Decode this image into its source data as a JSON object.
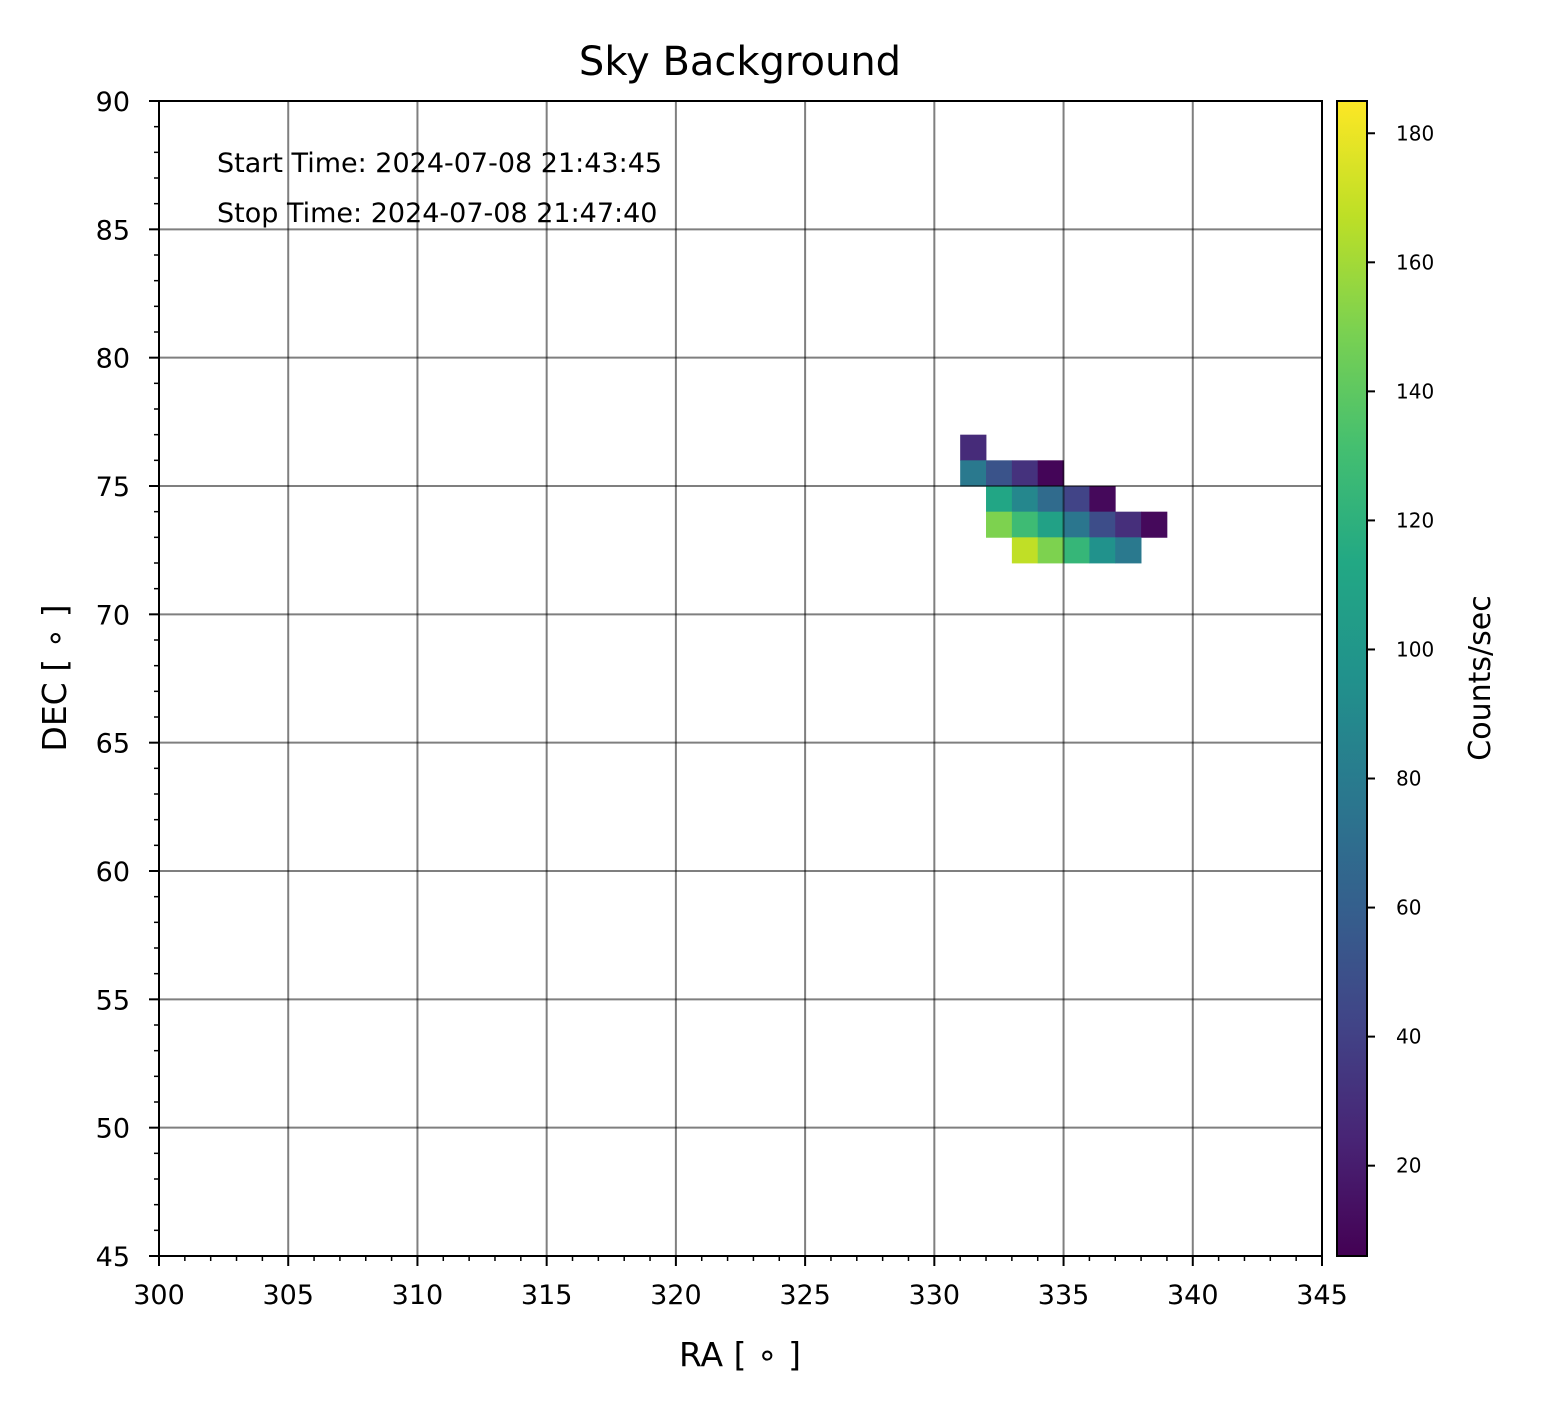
{
  "chart_data": {
    "type": "heatmap",
    "title": "Sky Background",
    "xlabel": "RA [$^\\circ$]",
    "xlabel_display": "RA [ ∘ ]",
    "ylabel": "DEC [$^\\circ$]",
    "ylabel_display": "DEC [ ∘ ]",
    "xlim": [
      300,
      345
    ],
    "ylim": [
      45,
      90
    ],
    "xticks": [
      300,
      305,
      310,
      315,
      320,
      325,
      330,
      335,
      340,
      345
    ],
    "yticks": [
      45,
      50,
      55,
      60,
      65,
      70,
      75,
      80,
      85,
      90
    ],
    "xtick_labels": [
      "300",
      "305",
      "310",
      "315",
      "320",
      "325",
      "330",
      "335",
      "340",
      "345"
    ],
    "ytick_labels": [
      "45",
      "50",
      "55",
      "60",
      "65",
      "70",
      "75",
      "80",
      "85",
      "90"
    ],
    "grid": true,
    "annotations": [
      "Start Time: 2024-07-08 21:43:45",
      "Stop Time: 2024-07-08 21:47:40"
    ],
    "colorbar": {
      "label": "Counts/sec",
      "colormap": "viridis",
      "vmin": 6,
      "vmax": 185,
      "ticks": [
        20,
        40,
        60,
        80,
        100,
        120,
        140,
        160,
        180
      ],
      "tick_labels": [
        "20",
        "40",
        "60",
        "80",
        "100",
        "120",
        "140",
        "160",
        "180"
      ]
    },
    "cell_width_deg": 1,
    "cell_height_deg": 1,
    "cells": [
      {
        "ra": 331.5,
        "dec": 76.5,
        "value": 28
      },
      {
        "ra": 331.5,
        "dec": 75.5,
        "value": 78
      },
      {
        "ra": 332.5,
        "dec": 75.5,
        "value": 52
      },
      {
        "ra": 333.5,
        "dec": 75.5,
        "value": 32
      },
      {
        "ra": 334.5,
        "dec": 75.5,
        "value": 8
      },
      {
        "ra": 332.5,
        "dec": 74.5,
        "value": 112
      },
      {
        "ra": 333.5,
        "dec": 74.5,
        "value": 88
      },
      {
        "ra": 334.5,
        "dec": 74.5,
        "value": 68
      },
      {
        "ra": 335.5,
        "dec": 74.5,
        "value": 42
      },
      {
        "ra": 336.5,
        "dec": 74.5,
        "value": 10
      },
      {
        "ra": 332.5,
        "dec": 73.5,
        "value": 150
      },
      {
        "ra": 333.5,
        "dec": 73.5,
        "value": 128
      },
      {
        "ra": 334.5,
        "dec": 73.5,
        "value": 108
      },
      {
        "ra": 335.5,
        "dec": 73.5,
        "value": 76
      },
      {
        "ra": 336.5,
        "dec": 73.5,
        "value": 48
      },
      {
        "ra": 337.5,
        "dec": 73.5,
        "value": 30
      },
      {
        "ra": 338.5,
        "dec": 73.5,
        "value": 10
      },
      {
        "ra": 333.5,
        "dec": 72.5,
        "value": 168
      },
      {
        "ra": 334.5,
        "dec": 72.5,
        "value": 150
      },
      {
        "ra": 335.5,
        "dec": 72.5,
        "value": 124
      },
      {
        "ra": 336.5,
        "dec": 72.5,
        "value": 96
      },
      {
        "ra": 337.5,
        "dec": 72.5,
        "value": 78
      }
    ]
  }
}
